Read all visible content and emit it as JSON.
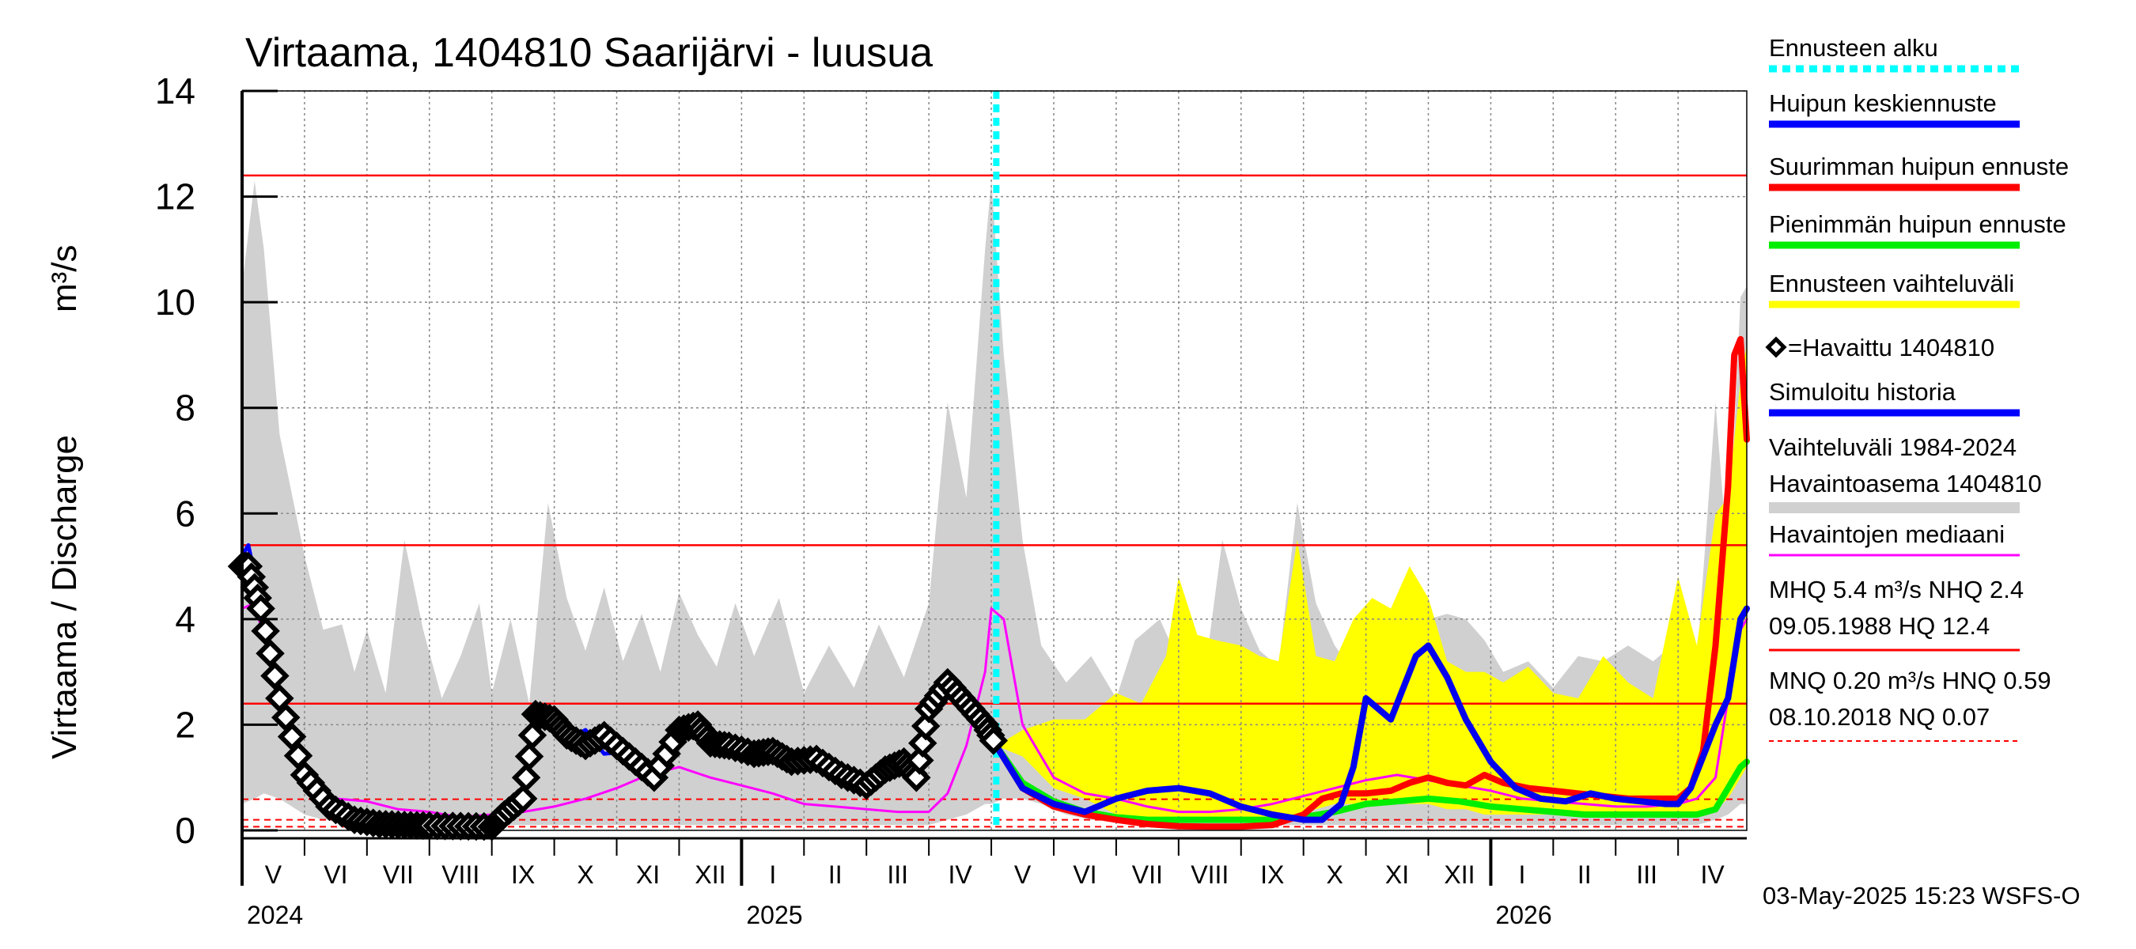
{
  "chart_data": {
    "type": "line",
    "title": "Virtaama, 1404810 Saarijärvi - luusua",
    "ylabel": "Virtaama / Discharge",
    "yunit": "m³/s",
    "ylim": [
      0,
      14
    ],
    "yticks": [
      0,
      2,
      4,
      6,
      8,
      10,
      12,
      14
    ],
    "grid": true,
    "x_range_months": [
      4.0,
      28.1
    ],
    "months": [
      {
        "label": "V",
        "m": 4
      },
      {
        "label": "VI",
        "m": 5
      },
      {
        "label": "VII",
        "m": 6
      },
      {
        "label": "VIII",
        "m": 7
      },
      {
        "label": "IX",
        "m": 8
      },
      {
        "label": "X",
        "m": 9
      },
      {
        "label": "XI",
        "m": 10
      },
      {
        "label": "XII",
        "m": 11
      },
      {
        "label": "I",
        "m": 12
      },
      {
        "label": "II",
        "m": 13
      },
      {
        "label": "III",
        "m": 14
      },
      {
        "label": "IV",
        "m": 15
      },
      {
        "label": "V",
        "m": 16
      },
      {
        "label": "VI",
        "m": 17
      },
      {
        "label": "VII",
        "m": 18
      },
      {
        "label": "VIII",
        "m": 19
      },
      {
        "label": "IX",
        "m": 20
      },
      {
        "label": "X",
        "m": 21
      },
      {
        "label": "XI",
        "m": 22
      },
      {
        "label": "XII",
        "m": 23
      },
      {
        "label": "I",
        "m": 24
      },
      {
        "label": "II",
        "m": 25
      },
      {
        "label": "III",
        "m": 26
      },
      {
        "label": "IV",
        "m": 27
      }
    ],
    "years": [
      {
        "label": "2024",
        "m": 4
      },
      {
        "label": "2025",
        "m": 12
      },
      {
        "label": "2026",
        "m": 24
      }
    ],
    "forecast_start_m": 16.08,
    "reference_lines": [
      {
        "name": "HQ",
        "value": 12.4,
        "style": "solid"
      },
      {
        "name": "MHQ",
        "value": 5.4,
        "style": "solid"
      },
      {
        "name": "NHQ",
        "value": 2.4,
        "style": "solid"
      },
      {
        "name": "HNQ",
        "value": 0.59,
        "style": "dashed"
      },
      {
        "name": "MNQ",
        "value": 0.2,
        "style": "dashed"
      },
      {
        "name": "NQ",
        "value": 0.07,
        "style": "dashed"
      }
    ],
    "series": [
      {
        "name": "Vaihteluväli 1984-2024 Havaintoasema 1404810",
        "kind": "band",
        "color": "#d0d0d0",
        "x": [
          4.0,
          4.2,
          4.35,
          4.6,
          5.0,
          5.3,
          5.6,
          5.8,
          6.0,
          6.3,
          6.6,
          6.9,
          7.2,
          7.5,
          7.8,
          8.0,
          8.3,
          8.6,
          8.9,
          9.2,
          9.5,
          9.8,
          10.1,
          10.4,
          10.7,
          11.0,
          11.3,
          11.6,
          11.9,
          12.2,
          12.6,
          13.0,
          13.4,
          13.8,
          14.2,
          14.6,
          15.0,
          15.3,
          15.6,
          15.9,
          16.0,
          16.2,
          16.5,
          16.8,
          17.2,
          17.6,
          18.0,
          18.3,
          18.7,
          19.0,
          19.4,
          19.7,
          20.0,
          20.3,
          20.6,
          20.9,
          21.2,
          21.5,
          21.8,
          22.1,
          22.4,
          22.7,
          23.0,
          23.3,
          23.6,
          23.9,
          24.2,
          24.6,
          25.0,
          25.4,
          25.8,
          26.2,
          26.6,
          27.0,
          27.3,
          27.6,
          27.8,
          28.0,
          28.1
        ],
        "upper": [
          10.3,
          12.3,
          11.0,
          7.5,
          5.2,
          3.8,
          3.9,
          3.0,
          3.8,
          2.6,
          5.5,
          3.8,
          2.5,
          3.3,
          4.3,
          2.6,
          4.0,
          2.4,
          6.2,
          4.4,
          3.4,
          4.6,
          3.2,
          4.1,
          3.0,
          4.5,
          3.7,
          3.1,
          4.3,
          3.3,
          4.4,
          2.6,
          3.5,
          2.7,
          3.9,
          2.9,
          4.3,
          8.1,
          6.3,
          11.0,
          12.3,
          9.0,
          5.5,
          3.5,
          2.8,
          3.3,
          2.5,
          3.6,
          4.0,
          3.2,
          2.8,
          5.5,
          4.2,
          3.4,
          3.1,
          6.2,
          4.3,
          3.5,
          3.0,
          3.4,
          4.1,
          3.5,
          4.0,
          4.1,
          4.0,
          3.6,
          3.0,
          3.2,
          2.7,
          3.3,
          3.2,
          3.5,
          3.2,
          3.6,
          3.2,
          8.1,
          5.0,
          10.1,
          10.3
        ],
        "lower": [
          0.5,
          0.6,
          0.7,
          0.6,
          0.3,
          0.2,
          0.2,
          0.1,
          0.1,
          0.1,
          0.1,
          0.1,
          0.1,
          0.1,
          0.1,
          0.1,
          0.1,
          0.1,
          0.1,
          0.1,
          0.1,
          0.1,
          0.1,
          0.1,
          0.1,
          0.1,
          0.1,
          0.1,
          0.1,
          0.1,
          0.1,
          0.1,
          0.1,
          0.1,
          0.1,
          0.1,
          0.1,
          0.2,
          0.3,
          0.5,
          0.5,
          0.6,
          0.6,
          0.5,
          0.3,
          0.2,
          0.2,
          0.1,
          0.1,
          0.1,
          0.1,
          0.1,
          0.1,
          0.1,
          0.1,
          0.1,
          0.1,
          0.1,
          0.1,
          0.1,
          0.1,
          0.1,
          0.1,
          0.1,
          0.1,
          0.1,
          0.1,
          0.1,
          0.1,
          0.1,
          0.1,
          0.1,
          0.1,
          0.1,
          0.1,
          0.2,
          0.3,
          0.5,
          0.5
        ]
      },
      {
        "name": "Ennusteen vaihteluväli",
        "kind": "band",
        "color": "#ffff00",
        "x": [
          16.08,
          16.5,
          17.0,
          17.5,
          18.0,
          18.4,
          18.8,
          19.0,
          19.3,
          19.6,
          20.0,
          20.3,
          20.6,
          20.9,
          21.2,
          21.5,
          21.8,
          22.1,
          22.4,
          22.7,
          23.0,
          23.3,
          23.6,
          23.9,
          24.2,
          24.6,
          25.0,
          25.4,
          25.8,
          26.2,
          26.6,
          27.0,
          27.3,
          27.6,
          27.8,
          28.0,
          28.1
        ],
        "upper": [
          1.6,
          1.9,
          2.1,
          2.1,
          2.6,
          2.4,
          3.3,
          4.8,
          3.7,
          3.6,
          3.5,
          3.3,
          3.2,
          5.5,
          3.3,
          3.2,
          4.0,
          4.4,
          4.2,
          5.0,
          4.4,
          3.2,
          3.0,
          3.0,
          2.8,
          3.1,
          2.6,
          2.5,
          3.3,
          2.8,
          2.5,
          4.8,
          3.5,
          6.0,
          6.3,
          8.5,
          9.2
        ],
        "lower": [
          1.6,
          1.4,
          0.8,
          0.6,
          0.3,
          0.2,
          0.2,
          0.2,
          0.2,
          0.2,
          0.2,
          0.2,
          0.2,
          0.3,
          0.4,
          0.5,
          0.5,
          0.5,
          0.5,
          0.5,
          0.5,
          0.4,
          0.4,
          0.3,
          0.3,
          0.3,
          0.3,
          0.3,
          0.3,
          0.3,
          0.3,
          0.3,
          0.3,
          0.4,
          0.6,
          1.0,
          1.2
        ]
      },
      {
        "name": "Havaintojen mediaani",
        "kind": "line",
        "color": "#ff00ff",
        "x": [
          4.0,
          4.2,
          4.5,
          4.8,
          5.1,
          5.5,
          6.0,
          6.5,
          7.0,
          7.5,
          8.0,
          8.5,
          9.0,
          9.5,
          10.0,
          10.5,
          11.0,
          11.5,
          12.0,
          12.5,
          13.0,
          13.5,
          14.0,
          14.5,
          15.0,
          15.3,
          15.6,
          15.9,
          16.0,
          16.2,
          16.5,
          17.0,
          17.5,
          18.0,
          18.5,
          19.0,
          19.5,
          20.0,
          20.5,
          21.0,
          21.5,
          22.0,
          22.5,
          23.0,
          23.5,
          24.0,
          24.5,
          25.0,
          25.5,
          26.0,
          26.5,
          27.0,
          27.3,
          27.6,
          27.8,
          28.0,
          28.1
        ],
        "y": [
          4.2,
          4.3,
          3.0,
          1.8,
          1.0,
          0.6,
          0.55,
          0.4,
          0.35,
          0.25,
          0.3,
          0.35,
          0.45,
          0.6,
          0.8,
          1.05,
          1.2,
          1.0,
          0.85,
          0.7,
          0.5,
          0.45,
          0.4,
          0.35,
          0.35,
          0.7,
          1.6,
          3.0,
          4.2,
          4.0,
          2.0,
          1.0,
          0.7,
          0.6,
          0.45,
          0.35,
          0.35,
          0.4,
          0.5,
          0.65,
          0.8,
          0.95,
          1.05,
          0.95,
          0.85,
          0.75,
          0.6,
          0.55,
          0.5,
          0.45,
          0.45,
          0.5,
          0.6,
          1.0,
          2.5,
          3.8,
          4.0
        ]
      },
      {
        "name": "Simuloitu historia",
        "kind": "line",
        "color": "#0000ff",
        "x": [
          4.0,
          4.1,
          4.3,
          4.6,
          5.0,
          5.4,
          5.8,
          6.2,
          6.6,
          7.0,
          7.5,
          8.0,
          8.2,
          8.5,
          8.7,
          9.0,
          9.2,
          9.5,
          9.8,
          10.2,
          10.6,
          11.0,
          11.3,
          11.5,
          11.8,
          12.2,
          12.5,
          12.8,
          13.2,
          13.6,
          14.0,
          14.3,
          14.6,
          14.8,
          15.0,
          15.3,
          15.6,
          15.9,
          16.08
        ],
        "y": [
          5.2,
          5.4,
          4.3,
          2.6,
          1.1,
          0.45,
          0.2,
          0.12,
          0.1,
          0.09,
          0.08,
          0.07,
          0.3,
          0.6,
          2.2,
          1.9,
          1.7,
          1.9,
          1.45,
          1.5,
          1.0,
          1.8,
          2.0,
          1.7,
          1.65,
          1.45,
          1.5,
          1.3,
          1.4,
          1.05,
          0.9,
          1.2,
          1.3,
          1.0,
          2.4,
          2.8,
          2.5,
          2.0,
          1.7
        ]
      },
      {
        "name": "Havaittu 1404810",
        "kind": "markers",
        "color": "#000000",
        "x": [
          4.0,
          4.1,
          4.3,
          4.6,
          5.0,
          5.4,
          5.8,
          6.2,
          6.6,
          7.0,
          7.5,
          8.0,
          8.2,
          8.5,
          8.7,
          9.0,
          9.2,
          9.5,
          9.8,
          10.2,
          10.6,
          11.0,
          11.3,
          11.5,
          11.8,
          12.2,
          12.5,
          12.8,
          13.2,
          13.6,
          14.0,
          14.3,
          14.6,
          14.8,
          15.0,
          15.3,
          15.6,
          15.9,
          16.08
        ],
        "y": [
          5.0,
          5.0,
          4.2,
          2.5,
          1.05,
          0.45,
          0.2,
          0.12,
          0.1,
          0.09,
          0.08,
          0.07,
          0.3,
          0.6,
          2.2,
          2.1,
          1.8,
          1.6,
          1.8,
          1.4,
          1.0,
          1.9,
          2.0,
          1.65,
          1.6,
          1.45,
          1.5,
          1.3,
          1.35,
          1.05,
          0.85,
          1.15,
          1.3,
          1.0,
          2.3,
          2.8,
          2.4,
          2.0,
          1.6
        ]
      },
      {
        "name": "Pienimmän huipun ennuste",
        "kind": "line",
        "color": "#00ee00",
        "x": [
          16.08,
          16.5,
          17.0,
          17.5,
          18.0,
          18.5,
          19.0,
          19.5,
          20.0,
          20.5,
          21.0,
          21.5,
          22.0,
          22.5,
          23.0,
          23.5,
          24.0,
          24.5,
          25.0,
          25.5,
          26.0,
          26.5,
          27.0,
          27.3,
          27.6,
          27.8,
          28.0,
          28.1
        ],
        "y": [
          1.6,
          0.9,
          0.55,
          0.35,
          0.25,
          0.2,
          0.2,
          0.2,
          0.2,
          0.2,
          0.25,
          0.35,
          0.5,
          0.55,
          0.6,
          0.55,
          0.45,
          0.4,
          0.35,
          0.3,
          0.3,
          0.3,
          0.3,
          0.3,
          0.4,
          0.8,
          1.2,
          1.3
        ]
      },
      {
        "name": "Suurimman huipun ennuste",
        "kind": "line",
        "color": "#ff0000",
        "x": [
          16.08,
          16.5,
          17.0,
          17.5,
          18.0,
          18.5,
          19.0,
          19.5,
          20.0,
          20.5,
          21.0,
          21.3,
          21.6,
          22.0,
          22.4,
          22.7,
          23.0,
          23.3,
          23.6,
          23.9,
          24.2,
          24.6,
          25.0,
          25.4,
          25.8,
          26.2,
          26.6,
          27.0,
          27.2,
          27.4,
          27.6,
          27.8,
          27.9,
          28.0,
          28.1
        ],
        "y": [
          1.6,
          0.8,
          0.45,
          0.3,
          0.2,
          0.12,
          0.08,
          0.07,
          0.07,
          0.1,
          0.3,
          0.6,
          0.7,
          0.7,
          0.75,
          0.9,
          1.0,
          0.9,
          0.85,
          1.05,
          0.9,
          0.8,
          0.75,
          0.7,
          0.65,
          0.6,
          0.6,
          0.6,
          0.8,
          1.5,
          3.5,
          6.5,
          9.0,
          9.3,
          7.4
        ]
      },
      {
        "name": "Huipun keskiennuste",
        "kind": "line",
        "color": "#0000ee",
        "x": [
          16.08,
          16.5,
          17.0,
          17.5,
          18.0,
          18.5,
          19.0,
          19.5,
          20.0,
          20.5,
          21.0,
          21.3,
          21.6,
          21.8,
          22.0,
          22.2,
          22.4,
          22.6,
          22.8,
          23.0,
          23.3,
          23.6,
          24.0,
          24.4,
          24.8,
          25.2,
          25.6,
          26.0,
          26.4,
          26.8,
          27.0,
          27.2,
          27.4,
          27.6,
          27.8,
          28.0,
          28.1
        ],
        "y": [
          1.6,
          0.8,
          0.5,
          0.35,
          0.6,
          0.75,
          0.8,
          0.7,
          0.45,
          0.3,
          0.2,
          0.2,
          0.5,
          1.2,
          2.5,
          2.3,
          2.1,
          2.7,
          3.3,
          3.5,
          2.9,
          2.1,
          1.3,
          0.8,
          0.6,
          0.55,
          0.7,
          0.6,
          0.55,
          0.5,
          0.5,
          0.8,
          1.4,
          2.0,
          2.5,
          4.0,
          4.2
        ]
      }
    ]
  },
  "legend": [
    {
      "text": "Ennusteen alku",
      "color": "#00ffff",
      "style": "dashed"
    },
    {
      "text": "Huipun keskiennuste",
      "color": "#0000ff",
      "style": "solid"
    },
    {
      "text": "Suurimman huipun ennuste",
      "color": "#ff0000",
      "style": "solid"
    },
    {
      "text": "Pienimmän huipun ennuste",
      "color": "#00ee00",
      "style": "solid"
    },
    {
      "text": "Ennusteen vaihteluväli",
      "color": "#ffff00",
      "style": "solid"
    },
    {
      "text": "=Havaittu 1404810",
      "color": "#000000",
      "style": "marker"
    },
    {
      "text": "Simuloitu historia",
      "color": "#0000ff",
      "style": "solid"
    },
    {
      "text": "Vaihteluväli 1984-2024",
      "text2": " Havaintoasema 1404810",
      "color": "#d0d0d0",
      "style": "solid"
    },
    {
      "text": "Havaintojen mediaani",
      "color": "#ff00ff",
      "style": "thin"
    },
    {
      "text": "MHQ  5.4 m³/s NHQ  2.4",
      "text2": "09.05.1988 HQ 12.4",
      "color": "#ff0000",
      "style": "thin"
    },
    {
      "text": "MNQ 0.20 m³/s HNQ 0.59",
      "text2": "08.10.2018 NQ 0.07",
      "color": "#ff0000",
      "style": "dashed-thin"
    }
  ],
  "footer": "03-May-2025 15:23 WSFS-O"
}
